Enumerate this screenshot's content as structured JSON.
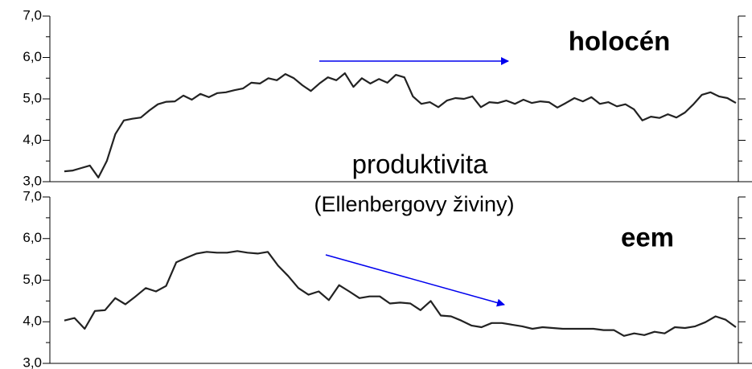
{
  "chart_data": [
    {
      "type": "line",
      "title": "holocén",
      "series": [
        {
          "name": null,
          "color": "#222222",
          "values": [
            3.25,
            3.27,
            3.33,
            3.39,
            3.1,
            3.5,
            4.15,
            4.48,
            4.52,
            4.55,
            4.72,
            4.87,
            4.93,
            4.94,
            5.08,
            4.98,
            5.12,
            5.04,
            5.14,
            5.16,
            5.21,
            5.25,
            5.39,
            5.37,
            5.5,
            5.45,
            5.6,
            5.5,
            5.33,
            5.19,
            5.37,
            5.52,
            5.45,
            5.62,
            5.29,
            5.5,
            5.37,
            5.48,
            5.39,
            5.58,
            5.52,
            5.06,
            4.88,
            4.92,
            4.8,
            4.96,
            5.02,
            5.0,
            5.06,
            4.8,
            4.92,
            4.9,
            4.96,
            4.88,
            4.98,
            4.9,
            4.94,
            4.92,
            4.79,
            4.9,
            5.02,
            4.94,
            5.04,
            4.88,
            4.92,
            4.82,
            4.87,
            4.75,
            4.48,
            4.57,
            4.54,
            4.63,
            4.55,
            4.67,
            4.87,
            5.1,
            5.16,
            5.06,
            5.02,
            4.9
          ]
        }
      ],
      "ylim": [
        3,
        7
      ],
      "yticks": [
        {
          "value": 3,
          "label": "3,0"
        },
        {
          "value": 4,
          "label": "4,0"
        },
        {
          "value": 5,
          "label": "5,0"
        },
        {
          "value": 6,
          "label": "6,0"
        },
        {
          "value": 7,
          "label": "7,0"
        }
      ]
    },
    {
      "type": "line",
      "title": "eem",
      "series": [
        {
          "name": null,
          "color": "#222222",
          "values": [
            4.03,
            4.09,
            3.83,
            4.26,
            4.28,
            4.57,
            4.42,
            4.61,
            4.81,
            4.73,
            4.86,
            5.43,
            5.54,
            5.64,
            5.68,
            5.66,
            5.66,
            5.7,
            5.66,
            5.64,
            5.68,
            5.35,
            5.1,
            4.81,
            4.65,
            4.73,
            4.52,
            4.88,
            4.73,
            4.57,
            4.61,
            4.61,
            4.44,
            4.46,
            4.44,
            4.28,
            4.5,
            4.15,
            4.13,
            4.03,
            3.91,
            3.87,
            3.97,
            3.97,
            3.93,
            3.89,
            3.83,
            3.87,
            3.85,
            3.83,
            3.83,
            3.83,
            3.83,
            3.8,
            3.8,
            3.66,
            3.72,
            3.68,
            3.76,
            3.72,
            3.87,
            3.85,
            3.89,
            3.99,
            4.13,
            4.05,
            3.87
          ]
        }
      ],
      "ylim": [
        3,
        7
      ],
      "yticks": [
        {
          "value": 3,
          "label": "3,0"
        },
        {
          "value": 4,
          "label": "4,0"
        },
        {
          "value": 5,
          "label": "5,0"
        },
        {
          "value": 6,
          "label": "6,0"
        },
        {
          "value": 7,
          "label": "7,0"
        }
      ]
    }
  ],
  "annotations": [
    "produktivita",
    "(Ellenbergovy živiny)"
  ]
}
